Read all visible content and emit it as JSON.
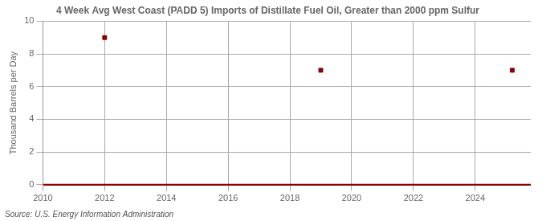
{
  "chart_data": {
    "type": "scatter",
    "title": "4 Week Avg West Coast (PADD 5) Imports of Distillate Fuel Oil, Greater than 2000 ppm Sulfur",
    "ylabel": "Thousand Barrels per Day",
    "annotations": [
      "Source: U.S. Energy Information Administration"
    ],
    "x": [
      2012.0,
      2019.0,
      2025.2
    ],
    "values": [
      9,
      7,
      7
    ],
    "color": "#8b0000",
    "marker": "square",
    "baseline": 0,
    "xlim": [
      2010,
      2025.8
    ],
    "xticks": [
      2010,
      2012,
      2014,
      2016,
      2018,
      2020,
      2022,
      2024
    ],
    "ylim": [
      0,
      10
    ],
    "yticks": [
      0,
      2,
      4,
      6,
      8,
      10
    ],
    "grid": true
  }
}
